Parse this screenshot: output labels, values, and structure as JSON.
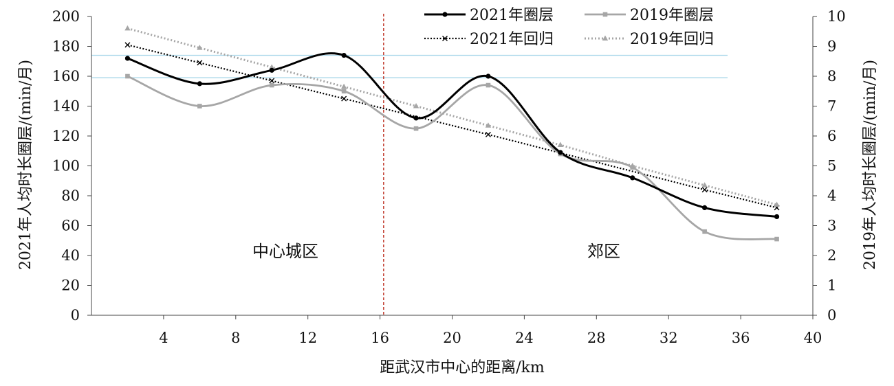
{
  "chart_data": {
    "type": "line",
    "xlabel": "距武汉市中心的距离/km",
    "ylabel_left": "2021年人均时长圈层/(min/月)",
    "ylabel_right": "2019年人均时长圈层/(min/月)",
    "xlim": [
      0,
      40
    ],
    "x_ticks": [
      4,
      8,
      12,
      16,
      20,
      24,
      28,
      32,
      36,
      40
    ],
    "ylim_left": [
      0,
      200
    ],
    "y_ticks_left": [
      0,
      20,
      40,
      60,
      80,
      100,
      120,
      140,
      160,
      180,
      200
    ],
    "ylim_right": [
      0,
      10
    ],
    "y_ticks_right": [
      0,
      1,
      2,
      3,
      4,
      5,
      6,
      7,
      8,
      9,
      10
    ],
    "divider_x": 16.2,
    "reference_lines_left": [
      174,
      159
    ],
    "region_labels": [
      "中心城区",
      "郊区"
    ],
    "legend_position": "top-right",
    "series": [
      {
        "name": "2021年圈层",
        "axis": "left",
        "style": "solid-smooth",
        "marker": "circle",
        "color": "#000000",
        "x": [
          2,
          6,
          10,
          14,
          18,
          22,
          26,
          30,
          34,
          38
        ],
        "y": [
          172,
          155,
          164,
          174,
          132,
          160,
          109,
          92,
          72,
          66
        ]
      },
      {
        "name": "2019年圈层",
        "axis": "right",
        "style": "solid-smooth",
        "marker": "square",
        "color": "#a6a6a6",
        "x": [
          2,
          6,
          10,
          14,
          18,
          22,
          26,
          30,
          34,
          38
        ],
        "y": [
          8.0,
          7.0,
          7.7,
          7.5,
          6.25,
          7.7,
          5.4,
          4.95,
          2.8,
          2.55
        ]
      },
      {
        "name": "2021年回归",
        "axis": "left",
        "style": "dotted",
        "marker": "x",
        "color": "#000000",
        "x": [
          2,
          6,
          10,
          14,
          22,
          34,
          38
        ],
        "y": [
          181,
          169,
          157,
          145,
          121,
          84,
          72
        ]
      },
      {
        "name": "2019年回归",
        "axis": "right",
        "style": "dotted",
        "marker": "triangle",
        "color": "#a6a6a6",
        "x": [
          2,
          6,
          10,
          14,
          18,
          22,
          26,
          30,
          34,
          38
        ],
        "y": [
          9.6,
          8.95,
          8.3,
          7.65,
          7.0,
          6.35,
          5.7,
          5.0,
          4.35,
          3.7
        ]
      }
    ]
  }
}
